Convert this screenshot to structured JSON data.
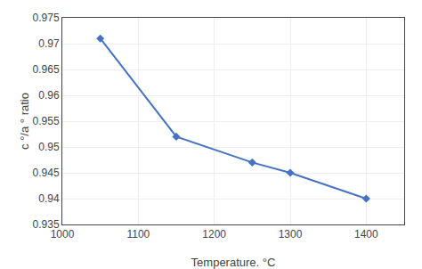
{
  "chart_data": {
    "type": "line",
    "x": [
      1050,
      1150,
      1250,
      1300,
      1400
    ],
    "values": [
      0.971,
      0.952,
      0.947,
      0.945,
      0.94
    ],
    "xlabel": "Temperature. °C",
    "ylabel": "c °/a ° ratio",
    "xlim": [
      1000,
      1450
    ],
    "ylim": [
      0.935,
      0.975
    ],
    "xticks": [
      1000,
      1100,
      1200,
      1300,
      1400
    ],
    "yticks": [
      0.935,
      0.94,
      0.945,
      0.95,
      0.955,
      0.96,
      0.965,
      0.97,
      0.975
    ],
    "color": "#4472C4",
    "marker": "diamond",
    "grid": true
  }
}
